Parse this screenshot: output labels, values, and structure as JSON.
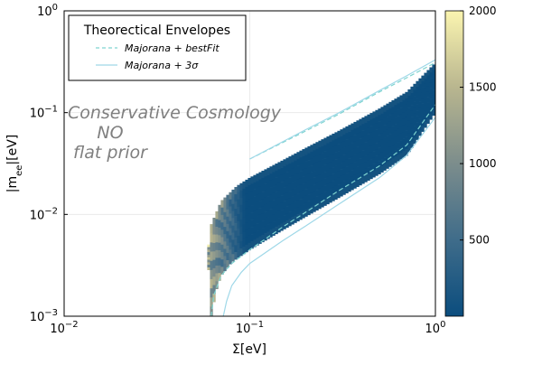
{
  "chart_data": {
    "type": "heatmap",
    "title": "",
    "xlabel": "Σ[eV]",
    "ylabel": "|m_ee|[eV]",
    "xscale": "log",
    "yscale": "log",
    "xlim": [
      0.01,
      1
    ],
    "ylim": [
      0.001,
      1
    ],
    "grid": true,
    "x_ticks": [
      {
        "value": 0.01,
        "base": "10",
        "exp": "−2"
      },
      {
        "value": 0.1,
        "base": "10",
        "exp": "−1"
      },
      {
        "value": 1,
        "base": "10",
        "exp": "0"
      }
    ],
    "y_ticks": [
      {
        "value": 0.001,
        "base": "10",
        "exp": "−3"
      },
      {
        "value": 0.01,
        "base": "10",
        "exp": "−2"
      },
      {
        "value": 0.1,
        "base": "10",
        "exp": "−1"
      },
      {
        "value": 1,
        "base": "10",
        "exp": "0"
      }
    ],
    "colorbar": {
      "range": [
        1,
        2000
      ],
      "ticks": [
        "500",
        "1000",
        "1500",
        "2000"
      ],
      "tick_values": [
        500,
        1000,
        1500,
        2000
      ],
      "colormap": [
        "#0b4d7e",
        "#3f6c8a",
        "#7c8d8c",
        "#b9b68f",
        "#fbf5b0"
      ]
    },
    "legend": {
      "title": "Theorectical Envelopes",
      "placement": "top-left",
      "entries": [
        {
          "label": "Majorana + bestFit",
          "style": "dashed",
          "color": "#7fd4d0"
        },
        {
          "label": "Majorana + 3σ",
          "style": "solid",
          "color": "#9fd8e8"
        }
      ]
    },
    "annotation": [
      "Conservative Cosmology",
      "NO",
      "flat prior"
    ],
    "series": [
      {
        "kind": "density",
        "region": "normal-ordering allowed band",
        "x_min": 0.059,
        "upper_edge": {
          "x": [
            0.059,
            0.062,
            0.07,
            0.085,
            0.1,
            0.15,
            0.2,
            0.3,
            0.5,
            0.7,
            1.0
          ],
          "y": [
            0.004,
            0.008,
            0.0135,
            0.019,
            0.023,
            0.034,
            0.045,
            0.066,
            0.11,
            0.16,
            0.31
          ]
        },
        "lower_edge": {
          "x": [
            0.062,
            0.066,
            0.07,
            0.08,
            0.1,
            0.15,
            0.2,
            0.3,
            0.5,
            0.7,
            1.0
          ],
          "y": [
            0.001,
            0.0018,
            0.0025,
            0.0034,
            0.0045,
            0.007,
            0.0095,
            0.0145,
            0.025,
            0.038,
            0.1
          ]
        }
      },
      {
        "name": "Majorana + bestFit",
        "kind": "envelope",
        "upper": {
          "x": [
            0.1,
            0.2,
            0.3,
            0.5,
            0.7,
            1.0
          ],
          "y": [
            0.035,
            0.066,
            0.096,
            0.16,
            0.22,
            0.31
          ]
        },
        "lower": {
          "x": [
            0.062,
            0.064,
            0.07,
            0.08,
            0.1,
            0.15,
            0.2,
            0.3,
            0.5,
            0.7,
            1.0
          ],
          "y": [
            0.001,
            0.0016,
            0.0025,
            0.0033,
            0.0045,
            0.0075,
            0.0105,
            0.017,
            0.03,
            0.048,
            0.12
          ]
        }
      },
      {
        "name": "Majorana + 3σ",
        "kind": "envelope",
        "upper": {
          "x": [
            0.1,
            0.2,
            0.3,
            0.5,
            0.7,
            1.0
          ],
          "y": [
            0.035,
            0.068,
            0.099,
            0.165,
            0.23,
            0.33
          ]
        },
        "lower": {
          "x": [
            0.072,
            0.075,
            0.08,
            0.09,
            0.1,
            0.15,
            0.2,
            0.3,
            0.5,
            0.7,
            1.0
          ],
          "y": [
            0.001,
            0.0014,
            0.002,
            0.0027,
            0.0033,
            0.0055,
            0.0077,
            0.0125,
            0.023,
            0.038,
            0.09
          ]
        }
      }
    ]
  }
}
